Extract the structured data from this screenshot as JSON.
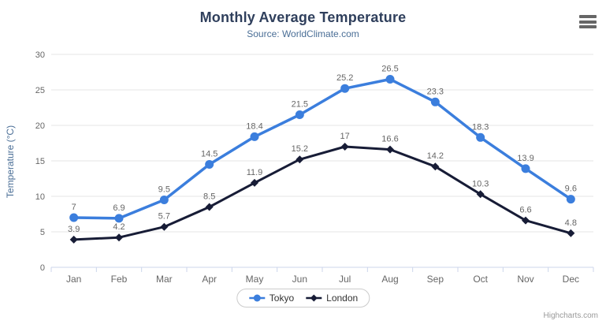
{
  "chart": {
    "title": "Monthly Average Temperature",
    "subtitle": "Source: WorldClimate.com",
    "credits": "Highcharts.com"
  },
  "chart_data": {
    "type": "line",
    "title": "Monthly Average Temperature",
    "subtitle": "Source: WorldClimate.com",
    "categories": [
      "Jan",
      "Feb",
      "Mar",
      "Apr",
      "May",
      "Jun",
      "Jul",
      "Aug",
      "Sep",
      "Oct",
      "Nov",
      "Dec"
    ],
    "series": [
      {
        "name": "Tokyo",
        "color": "#3b7edd",
        "marker": "circle",
        "values": [
          7,
          6.9,
          9.5,
          14.5,
          18.4,
          21.5,
          25.2,
          26.5,
          23.3,
          18.3,
          13.9,
          9.6
        ]
      },
      {
        "name": "London",
        "color": "#171c36",
        "marker": "diamond",
        "values": [
          3.9,
          4.2,
          5.7,
          8.5,
          11.9,
          15.2,
          17,
          16.6,
          14.2,
          10.3,
          6.6,
          4.8
        ]
      }
    ],
    "xlabel": "",
    "ylabel": "Temperature (°C)",
    "ylim": [
      0,
      30
    ],
    "yticks": [
      0,
      5,
      10,
      15,
      20,
      25,
      30
    ],
    "grid": true,
    "data_labels": true,
    "legend_position": "bottom"
  },
  "colors": {
    "grid": "#e6e6e6",
    "axis_line": "#ccd6eb",
    "axis_label": "#666666",
    "data_label": "#666666",
    "title": "#2f3f5c",
    "subtitle": "#4a6e96",
    "legend_border": "#cccccc",
    "credits": "#999999"
  }
}
